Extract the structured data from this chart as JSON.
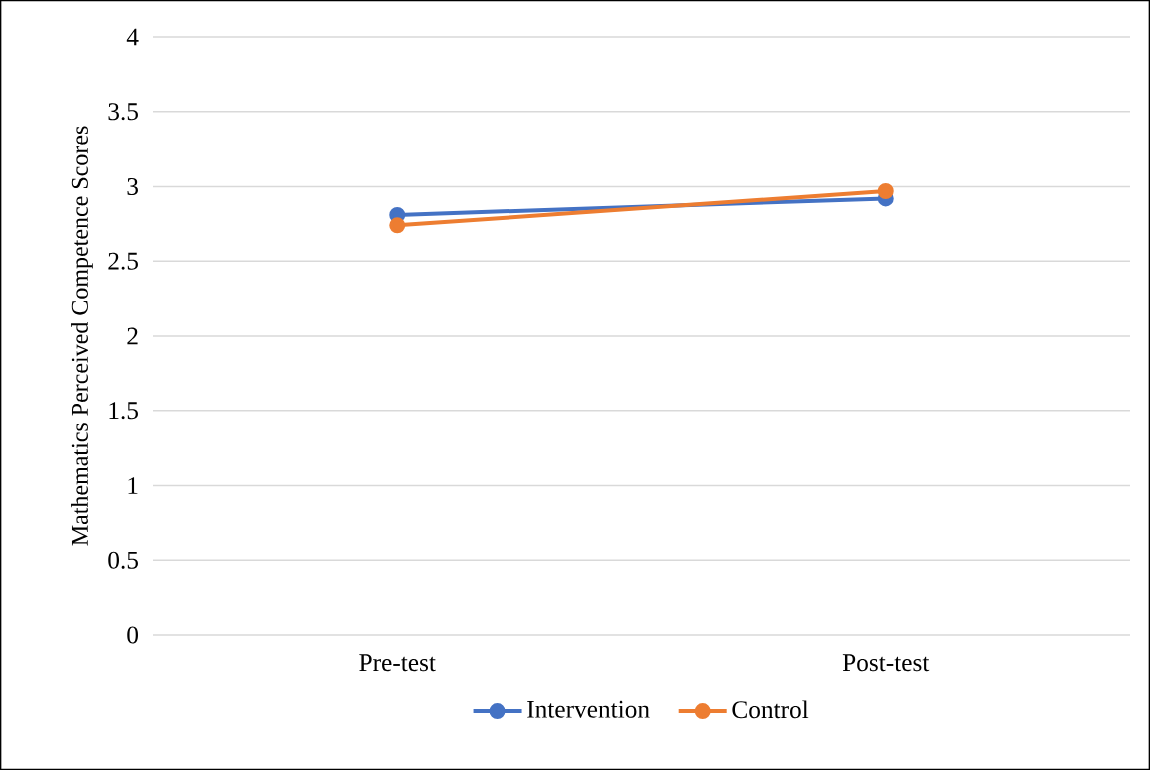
{
  "chart_data": {
    "type": "line",
    "ylabel": "Mathematics Perceived Competence Scores",
    "categories": [
      "Pre-test",
      "Post-test"
    ],
    "series": [
      {
        "name": "Intervention",
        "color": "#4472c4",
        "values": [
          2.81,
          2.92
        ]
      },
      {
        "name": "Control",
        "color": "#ed7d31",
        "values": [
          2.74,
          2.97
        ]
      }
    ],
    "ylim": [
      0,
      4
    ],
    "yticks": [
      0,
      0.5,
      1,
      1.5,
      2,
      2.5,
      3,
      3.5,
      4
    ],
    "grid": "y",
    "legend": "bottom",
    "marker": "circle",
    "line_style": "solid"
  }
}
